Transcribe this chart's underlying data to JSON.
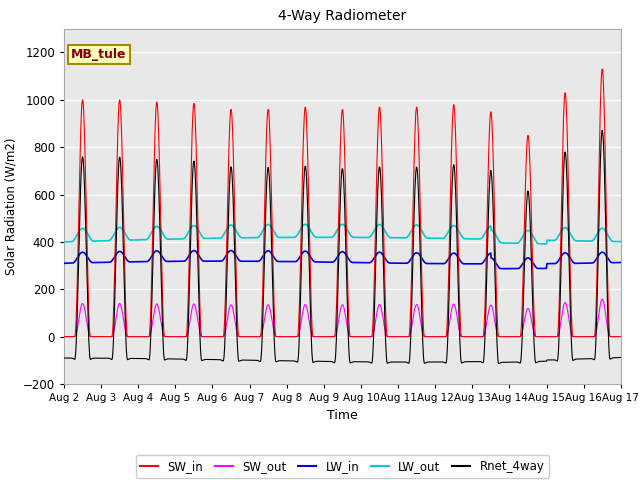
{
  "title": "4-Way Radiometer",
  "xlabel": "Time",
  "ylabel": "Solar Radiation (W/m2)",
  "ylim": [
    -200,
    1300
  ],
  "yticks": [
    -200,
    0,
    200,
    400,
    600,
    800,
    1000,
    1200
  ],
  "n_days": 15,
  "colors": {
    "SW_in": "#ff0000",
    "SW_out": "#ff00ff",
    "LW_in": "#0000ee",
    "LW_out": "#00cccc",
    "Rnet_4way": "#000000"
  },
  "legend_labels": [
    "SW_in",
    "SW_out",
    "LW_in",
    "LW_out",
    "Rnet_4way"
  ],
  "annotation_text": "MB_tule",
  "annotation_box_color": "#ffffbb",
  "annotation_box_edgecolor": "#aa8800",
  "annotation_text_color": "#880000",
  "fig_facecolor": "#ffffff",
  "plot_bg_color": "#e8e8e8",
  "grid_color": "#ffffff",
  "xtick_labels": [
    "Aug 2",
    "Aug 3",
    "Aug 4",
    "Aug 5",
    "Aug 6",
    "Aug 7",
    "Aug 8",
    "Aug 9",
    "Aug 10",
    "Aug 11",
    "Aug 12",
    "Aug 13",
    "Aug 14",
    "Aug 15",
    "Aug 16",
    "Aug 17"
  ]
}
